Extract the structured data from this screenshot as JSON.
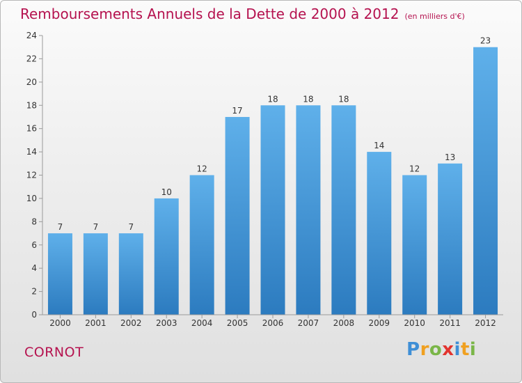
{
  "title": "Remboursements Annuels de la Dette de 2000 à 2012",
  "unit_note": "(en milliers d'€)",
  "commune": "CORNOT",
  "logo": {
    "letters": [
      {
        "char": "P",
        "color": "#3f8fd6"
      },
      {
        "char": "r",
        "color": "#f0a020"
      },
      {
        "char": "o",
        "color": "#7ab648"
      },
      {
        "char": "x",
        "color": "#e2342f"
      },
      {
        "char": "i",
        "color": "#3f8fd6"
      },
      {
        "char": "t",
        "color": "#f0a020"
      },
      {
        "char": "i",
        "color": "#7ab648"
      }
    ]
  },
  "chart_data": {
    "type": "bar",
    "categories": [
      "2000",
      "2001",
      "2002",
      "2003",
      "2004",
      "2005",
      "2006",
      "2007",
      "2008",
      "2009",
      "2010",
      "2011",
      "2012"
    ],
    "values": [
      7,
      7,
      7,
      10,
      12,
      17,
      18,
      18,
      18,
      14,
      12,
      13,
      23
    ],
    "data_labels": [
      "7",
      "7",
      "7",
      "10",
      "12",
      "17",
      "18",
      "18",
      "18",
      "14",
      "12",
      "13",
      "23"
    ],
    "ylim": [
      0,
      24
    ],
    "yticks": [
      0,
      2,
      4,
      6,
      8,
      10,
      12,
      14,
      16,
      18,
      20,
      22,
      24
    ],
    "grid": false,
    "bar_color": "#4a9ee0",
    "xlabel": "",
    "ylabel": ""
  }
}
